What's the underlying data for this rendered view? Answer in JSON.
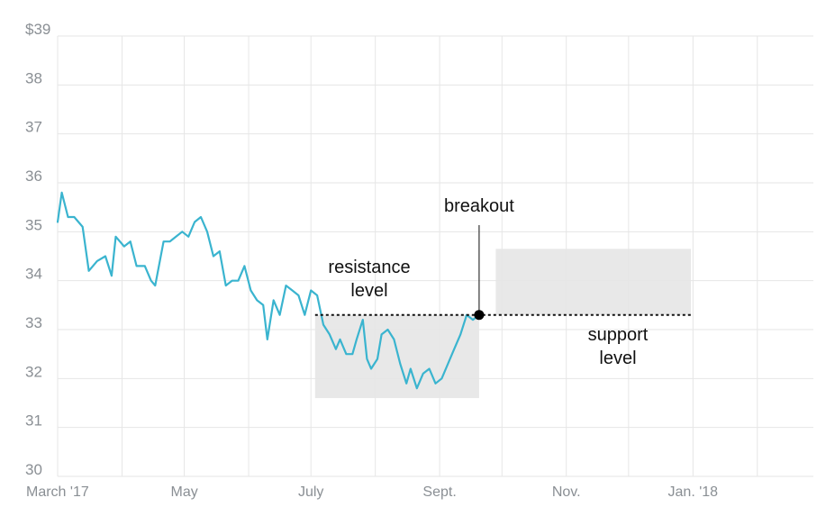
{
  "chart_data": {
    "type": "line",
    "title": "",
    "xlabel": "",
    "ylabel": "",
    "x_tick_labels": [
      "March '17",
      "May",
      "July",
      "Sept.",
      "Nov.",
      "Jan. '18"
    ],
    "y_tick_labels": [
      "$39",
      "38",
      "37",
      "36",
      "35",
      "34",
      "33",
      "32",
      "31",
      "30"
    ],
    "ylim": [
      30,
      39
    ],
    "xlim": [
      "2017-03-01",
      "2018-02-28"
    ],
    "grid": true,
    "series": [
      {
        "color": "#3ab4cf",
        "points": [
          [
            "2017-03-01",
            35.2
          ],
          [
            "2017-03-03",
            35.8
          ],
          [
            "2017-03-06",
            35.3
          ],
          [
            "2017-03-09",
            35.3
          ],
          [
            "2017-03-13",
            35.1
          ],
          [
            "2017-03-16",
            34.2
          ],
          [
            "2017-03-20",
            34.4
          ],
          [
            "2017-03-24",
            34.5
          ],
          [
            "2017-03-27",
            34.1
          ],
          [
            "2017-03-29",
            34.9
          ],
          [
            "2017-04-02",
            34.7
          ],
          [
            "2017-04-05",
            34.8
          ],
          [
            "2017-04-08",
            34.3
          ],
          [
            "2017-04-12",
            34.3
          ],
          [
            "2017-04-15",
            34.0
          ],
          [
            "2017-04-17",
            33.9
          ],
          [
            "2017-04-21",
            34.8
          ],
          [
            "2017-04-24",
            34.8
          ],
          [
            "2017-04-27",
            34.9
          ],
          [
            "2017-04-30",
            35.0
          ],
          [
            "2017-05-03",
            34.9
          ],
          [
            "2017-05-06",
            35.2
          ],
          [
            "2017-05-09",
            35.3
          ],
          [
            "2017-05-12",
            35.0
          ],
          [
            "2017-05-15",
            34.5
          ],
          [
            "2017-05-18",
            34.6
          ],
          [
            "2017-05-21",
            33.9
          ],
          [
            "2017-05-24",
            34.0
          ],
          [
            "2017-05-27",
            34.0
          ],
          [
            "2017-05-30",
            34.3
          ],
          [
            "2017-06-02",
            33.8
          ],
          [
            "2017-06-05",
            33.6
          ],
          [
            "2017-06-08",
            33.5
          ],
          [
            "2017-06-10",
            32.8
          ],
          [
            "2017-06-13",
            33.6
          ],
          [
            "2017-06-16",
            33.3
          ],
          [
            "2017-06-19",
            33.9
          ],
          [
            "2017-06-22",
            33.8
          ],
          [
            "2017-06-25",
            33.7
          ],
          [
            "2017-06-28",
            33.3
          ],
          [
            "2017-07-01",
            33.8
          ],
          [
            "2017-07-04",
            33.7
          ],
          [
            "2017-07-07",
            33.1
          ],
          [
            "2017-07-10",
            32.9
          ],
          [
            "2017-07-13",
            32.6
          ],
          [
            "2017-07-15",
            32.8
          ],
          [
            "2017-07-18",
            32.5
          ],
          [
            "2017-07-21",
            32.5
          ],
          [
            "2017-07-23",
            32.8
          ],
          [
            "2017-07-26",
            33.2
          ],
          [
            "2017-07-28",
            32.4
          ],
          [
            "2017-07-30",
            32.2
          ],
          [
            "2017-08-02",
            32.4
          ],
          [
            "2017-08-04",
            32.9
          ],
          [
            "2017-08-07",
            33.0
          ],
          [
            "2017-08-10",
            32.8
          ],
          [
            "2017-08-13",
            32.3
          ],
          [
            "2017-08-16",
            31.9
          ],
          [
            "2017-08-18",
            32.2
          ],
          [
            "2017-08-21",
            31.8
          ],
          [
            "2017-08-24",
            32.1
          ],
          [
            "2017-08-27",
            32.2
          ],
          [
            "2017-08-30",
            31.9
          ],
          [
            "2017-09-02",
            32.0
          ],
          [
            "2017-09-05",
            32.3
          ],
          [
            "2017-09-08",
            32.6
          ],
          [
            "2017-09-11",
            32.9
          ],
          [
            "2017-09-14",
            33.3
          ],
          [
            "2017-09-17",
            33.2
          ],
          [
            "2017-09-20",
            33.3
          ]
        ]
      }
    ],
    "annotations": [
      {
        "text_lines": [
          "resistance",
          "level"
        ],
        "value": 33.3
      },
      {
        "text_lines": [
          "support",
          "level"
        ],
        "value": 33.3
      },
      {
        "text_lines": [
          "breakout"
        ]
      }
    ],
    "shaded_regions": [
      {
        "x0": "2017-07-03",
        "x1": "2017-09-20",
        "y0": 31.6,
        "y1": 33.3
      },
      {
        "x0": "2017-09-28",
        "x1": "2017-12-31",
        "y0": 33.3,
        "y1": 34.65
      }
    ]
  }
}
